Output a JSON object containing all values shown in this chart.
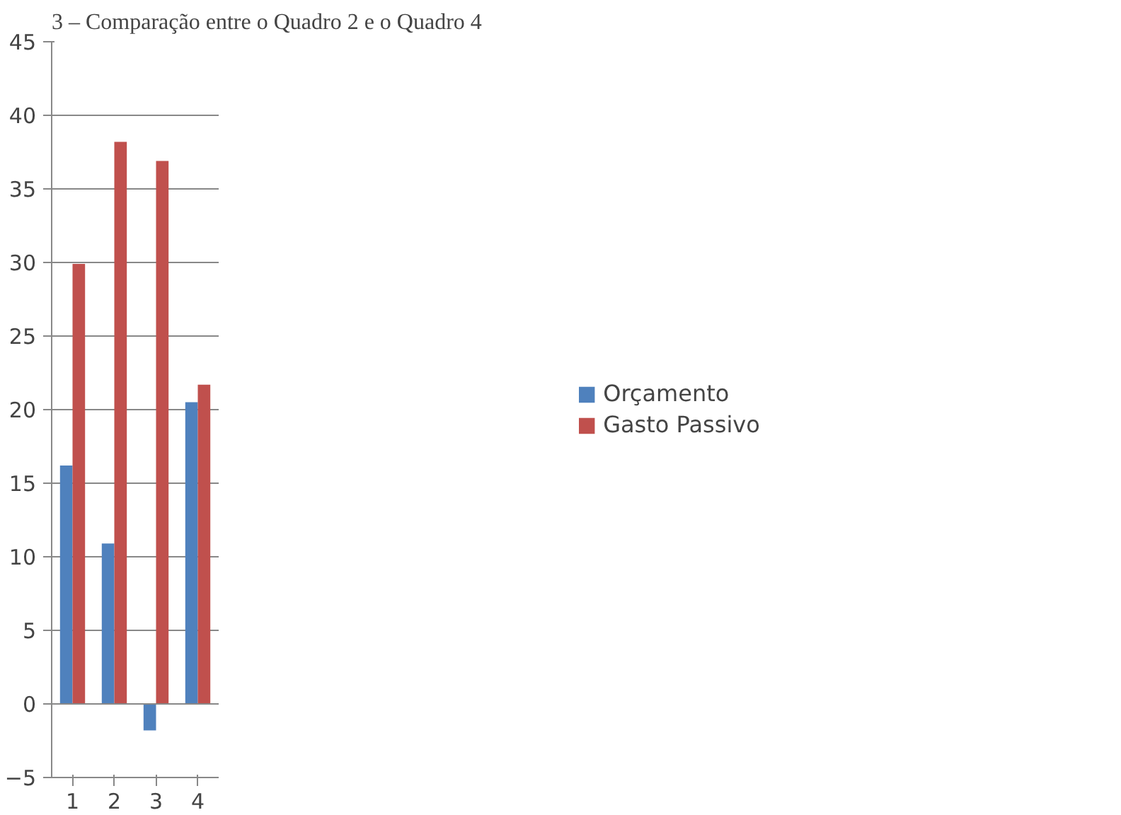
{
  "chart_data": {
    "type": "bar",
    "title": "3 – Comparação entre o Quadro 2 e o Quadro 4",
    "categories": [
      "1",
      "2",
      "3",
      "4"
    ],
    "series": [
      {
        "name": "Orçamento",
        "color": "#4f81bd",
        "values": [
          16.2,
          10.9,
          -1.8,
          20.5
        ]
      },
      {
        "name": "Gasto Passivo",
        "color": "#c0504d",
        "values": [
          29.9,
          38.2,
          36.9,
          21.7
        ]
      }
    ],
    "ylim": [
      -5,
      45
    ],
    "yticks": [
      -5,
      0,
      5,
      10,
      15,
      20,
      25,
      30,
      35,
      40,
      45
    ],
    "grid": "y",
    "legend": "right"
  }
}
